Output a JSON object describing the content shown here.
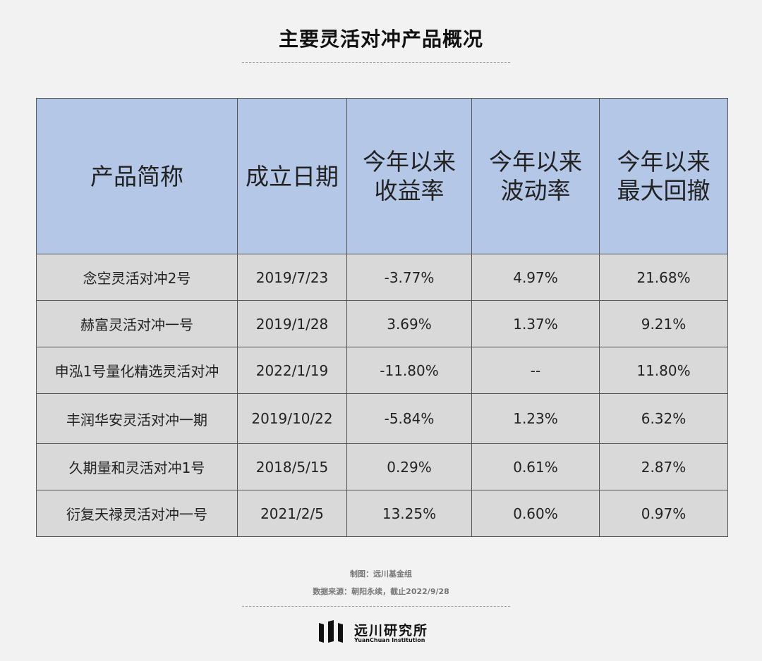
{
  "title": "主要灵活对冲产品概况",
  "table": {
    "headers": [
      [
        "产品简称"
      ],
      [
        "成立日期"
      ],
      [
        "今年以来",
        "收益率"
      ],
      [
        "今年以来",
        "波动率"
      ],
      [
        "今年以来",
        "最大回撤"
      ]
    ],
    "rows": [
      [
        "念空灵活对冲2号",
        "2019/7/23",
        "-3.77%",
        "4.97%",
        "21.68%"
      ],
      [
        "赫富灵活对冲一号",
        "2019/1/28",
        "3.69%",
        "1.37%",
        "9.21%"
      ],
      [
        "申泓1号量化精选灵活对冲",
        "2022/1/19",
        "-11.80%",
        "--",
        "11.80%"
      ],
      [
        "丰润华安灵活对冲一期",
        "2019/10/22",
        "-5.84%",
        "1.23%",
        "6.32%"
      ],
      [
        "久期量和灵活对冲1号",
        "2018/5/15",
        "0.29%",
        "0.61%",
        "2.87%"
      ],
      [
        "衍复天禄灵活对冲一号",
        "2021/2/5",
        "13.25%",
        "0.60%",
        "0.97%"
      ]
    ]
  },
  "footer": {
    "maker": "制图：远川基金组",
    "source": "数据来源：朝阳永续，截止2022/9/28"
  },
  "logo": {
    "name": "远川研究所",
    "english": "YuanChuan Institution"
  },
  "colors": {
    "header_bg": "#b4c7e7",
    "cell_bg": "#d9d9d9",
    "page_bg": "#f2f2f2"
  }
}
